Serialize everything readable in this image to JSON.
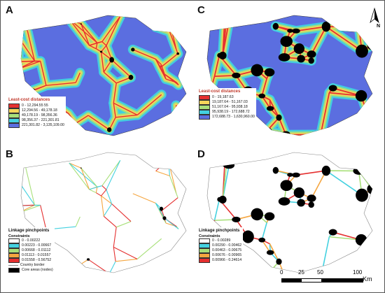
{
  "panels": [
    {
      "label": "A"
    },
    {
      "label": "C"
    },
    {
      "label": "B"
    },
    {
      "label": "D"
    }
  ],
  "legend_a": {
    "title": "Least-cost distances",
    "items": [
      {
        "label": "0 - 12,294.55  55",
        "color": "#e53030"
      },
      {
        "label": "12,294.56 - 49,178.18",
        "color": "#f5d65a"
      },
      {
        "label": "49,178.19 - 98,356.36",
        "color": "#a8e07a"
      },
      {
        "label": "98,356.37 - 221,301.81",
        "color": "#43d1e0"
      },
      {
        "label": "221,301.82 - 3,135,109.00",
        "color": "#5b6ee0"
      }
    ]
  },
  "legend_c": {
    "title": "Least-cost distances",
    "items": [
      {
        "label": "0 - 19,187.63",
        "color": "#e53030"
      },
      {
        "label": "19,187.64 - 51,167.03",
        "color": "#f5d65a"
      },
      {
        "label": "51,167.04 - 95,938.18",
        "color": "#a8e07a"
      },
      {
        "label": "95,938.19 - 172,688.72",
        "color": "#43d1e0"
      },
      {
        "label": "172,688.73 - 1,630,960.00",
        "color": "#5b6ee0"
      }
    ]
  },
  "legend_b": {
    "title": "Linkage pinchpoints",
    "subtitle": "Constraints",
    "items": [
      {
        "label": "0 - 0.00222",
        "color": "#ffffff"
      },
      {
        "label": "0.00223 - 0.00667",
        "color": "#43d1e0"
      },
      {
        "label": "0.00668 - 0.01112",
        "color": "#a8e07a"
      },
      {
        "label": "0.01113 - 0.01557",
        "color": "#f5a640"
      },
      {
        "label": "0.01558 - 0.56752",
        "color": "#e53030"
      }
    ],
    "border_label": "Country border",
    "nodes_label": "Core areas (nodes)"
  },
  "legend_d": {
    "title": "Linkage pinchpoints",
    "subtitle": "Constraints",
    "items": [
      {
        "label": "0 - 0.00289",
        "color": "#ffffff"
      },
      {
        "label": "0.00290 - 0.00462",
        "color": "#43d1e0"
      },
      {
        "label": "0.00463 - 0.00675",
        "color": "#a8e07a"
      },
      {
        "label": "0.00676 - 0.00965",
        "color": "#f5a640"
      },
      {
        "label": "0.00966 - 0.24614",
        "color": "#e53030"
      }
    ]
  },
  "north_label": "N",
  "scale": {
    "ticks": [
      "0",
      "25",
      "50",
      "100"
    ],
    "unit": "Km"
  }
}
